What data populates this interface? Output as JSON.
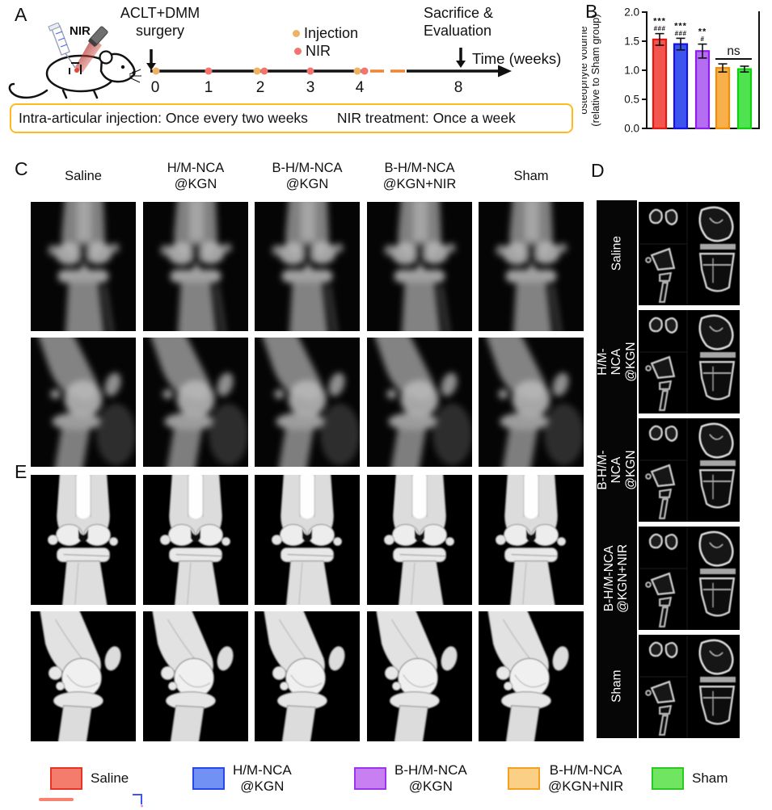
{
  "figure": {
    "panel_a": {
      "label": "A",
      "nir_device_label": "NIR",
      "surgery_annotation": "ACLT+DMM\nsurgery",
      "sacrifice_annotation": "Sacrifice &\nEvaluation",
      "time_axis_label": "Time (weeks)",
      "tick_labels": [
        "0",
        "1",
        "2",
        "3",
        "4",
        "8"
      ],
      "dot_legend": [
        {
          "label": "Injection",
          "color": "#eeb264"
        },
        {
          "label": "NIR",
          "color": "#f3736e"
        }
      ],
      "injection_weeks": [
        0,
        2,
        4
      ],
      "nir_weeks": [
        1,
        2,
        3,
        4
      ],
      "banner_left": "Intra-articular injection: Once every two weeks",
      "banner_right": "NIR treatment: Once a week",
      "banner_border_color": "#ffbb1e",
      "axis_break_color": "#ef8432"
    },
    "panel_b": {
      "label": "B"
    },
    "panel_c": {
      "label": "C",
      "columns": [
        "Saline",
        "H/M-NCA\n@KGN",
        "B-H/M-NCA\n@KGN",
        "B-H/M-NCA\n@KGN+NIR",
        "Sham"
      ],
      "row_types": [
        "anteroposterior X-ray",
        "lateral X-ray"
      ]
    },
    "panel_d": {
      "label": "D",
      "rows": [
        "Saline",
        "H/M-NCA\n@KGN",
        "B-H/M-NCA\n@KGN",
        "B-H/M-NCA\n@KGN+NIR",
        "Sham"
      ]
    },
    "panel_e": {
      "label": "E",
      "row_types": [
        "3D micro-CT front view",
        "3D micro-CT side view"
      ]
    },
    "legend": {
      "items": [
        {
          "label": "Saline",
          "fill": "#f37c6d",
          "border": "#e73323"
        },
        {
          "label": "H/M-NCA\n@KGN",
          "fill": "#7291f5",
          "border": "#2945ec"
        },
        {
          "label": "B-H/M-NCA\n@KGN",
          "fill": "#c87ff2",
          "border": "#9c36ea"
        },
        {
          "label": "B-H/M-NCA\n@KGN+NIR",
          "fill": "#fbcf86",
          "border": "#f5a11d"
        },
        {
          "label": "Sham",
          "fill": "#70e561",
          "border": "#2bc922"
        }
      ]
    }
  },
  "chart_data": {
    "type": "bar",
    "title": "",
    "ylabel": "osteophyte volume\n(relative to Sham group)",
    "categories": [
      "Saline",
      "H/M-NCA@KGN",
      "B-H/M-NCA@KGN",
      "B-H/M-NCA@KGN+NIR",
      "Sham"
    ],
    "values": [
      1.53,
      1.45,
      1.33,
      1.04,
      1.02
    ],
    "errors": [
      0.1,
      0.1,
      0.12,
      0.07,
      0.05
    ],
    "bar_fill": [
      "#f3564e",
      "#3c55ef",
      "#b56ef2",
      "#f9b04a",
      "#4fe44f"
    ],
    "bar_border": [
      "#e3170f",
      "#1410e6",
      "#8c20ea",
      "#f28d05",
      "#0fd00f"
    ],
    "significance_upper": [
      "***",
      "***",
      "**",
      "",
      ""
    ],
    "significance_lower": [
      "###",
      "###",
      "#",
      "",
      ""
    ],
    "ns_bracket": {
      "label": "ns",
      "from_bar": 3,
      "to_bar": 4
    },
    "ylim": [
      0,
      2.0
    ],
    "yticks": [
      "0.0",
      "0.5",
      "1.0",
      "1.5",
      "2.0"
    ],
    "grid": false,
    "legend_position": "bottom"
  }
}
